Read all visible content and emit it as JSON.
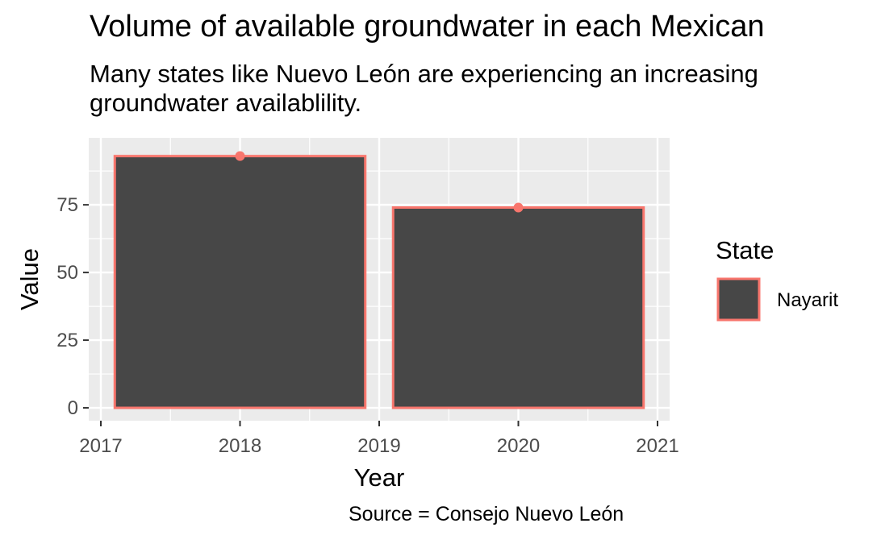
{
  "title": "Volume of available groundwater in each Mexican",
  "subtitle_line1": "Many states like Nuevo León are experiencing an increasing",
  "subtitle_line2": "groundwater availablility.",
  "caption": "Source = Consejo Nuevo León",
  "chart_data": {
    "type": "bar",
    "title": "Volume of available groundwater in each Mexican",
    "xlabel": "Year",
    "ylabel": "Value",
    "x": [
      2018,
      2020
    ],
    "series": [
      {
        "name": "Nayarit",
        "values": [
          93,
          74
        ]
      }
    ],
    "xlim": [
      2017,
      2021
    ],
    "ylim": [
      0,
      95
    ],
    "x_ticks": [
      "2017",
      "2018",
      "2019",
      "2020",
      "2021"
    ],
    "y_ticks": [
      "0",
      "25",
      "50",
      "75"
    ],
    "grid": true,
    "legend": {
      "title": "State",
      "position": "right",
      "entries": [
        "Nayarit"
      ]
    },
    "colors": {
      "fill": "#474747",
      "outline": "#f8766d",
      "panel": "#ebebeb",
      "grid": "#ffffff"
    }
  }
}
